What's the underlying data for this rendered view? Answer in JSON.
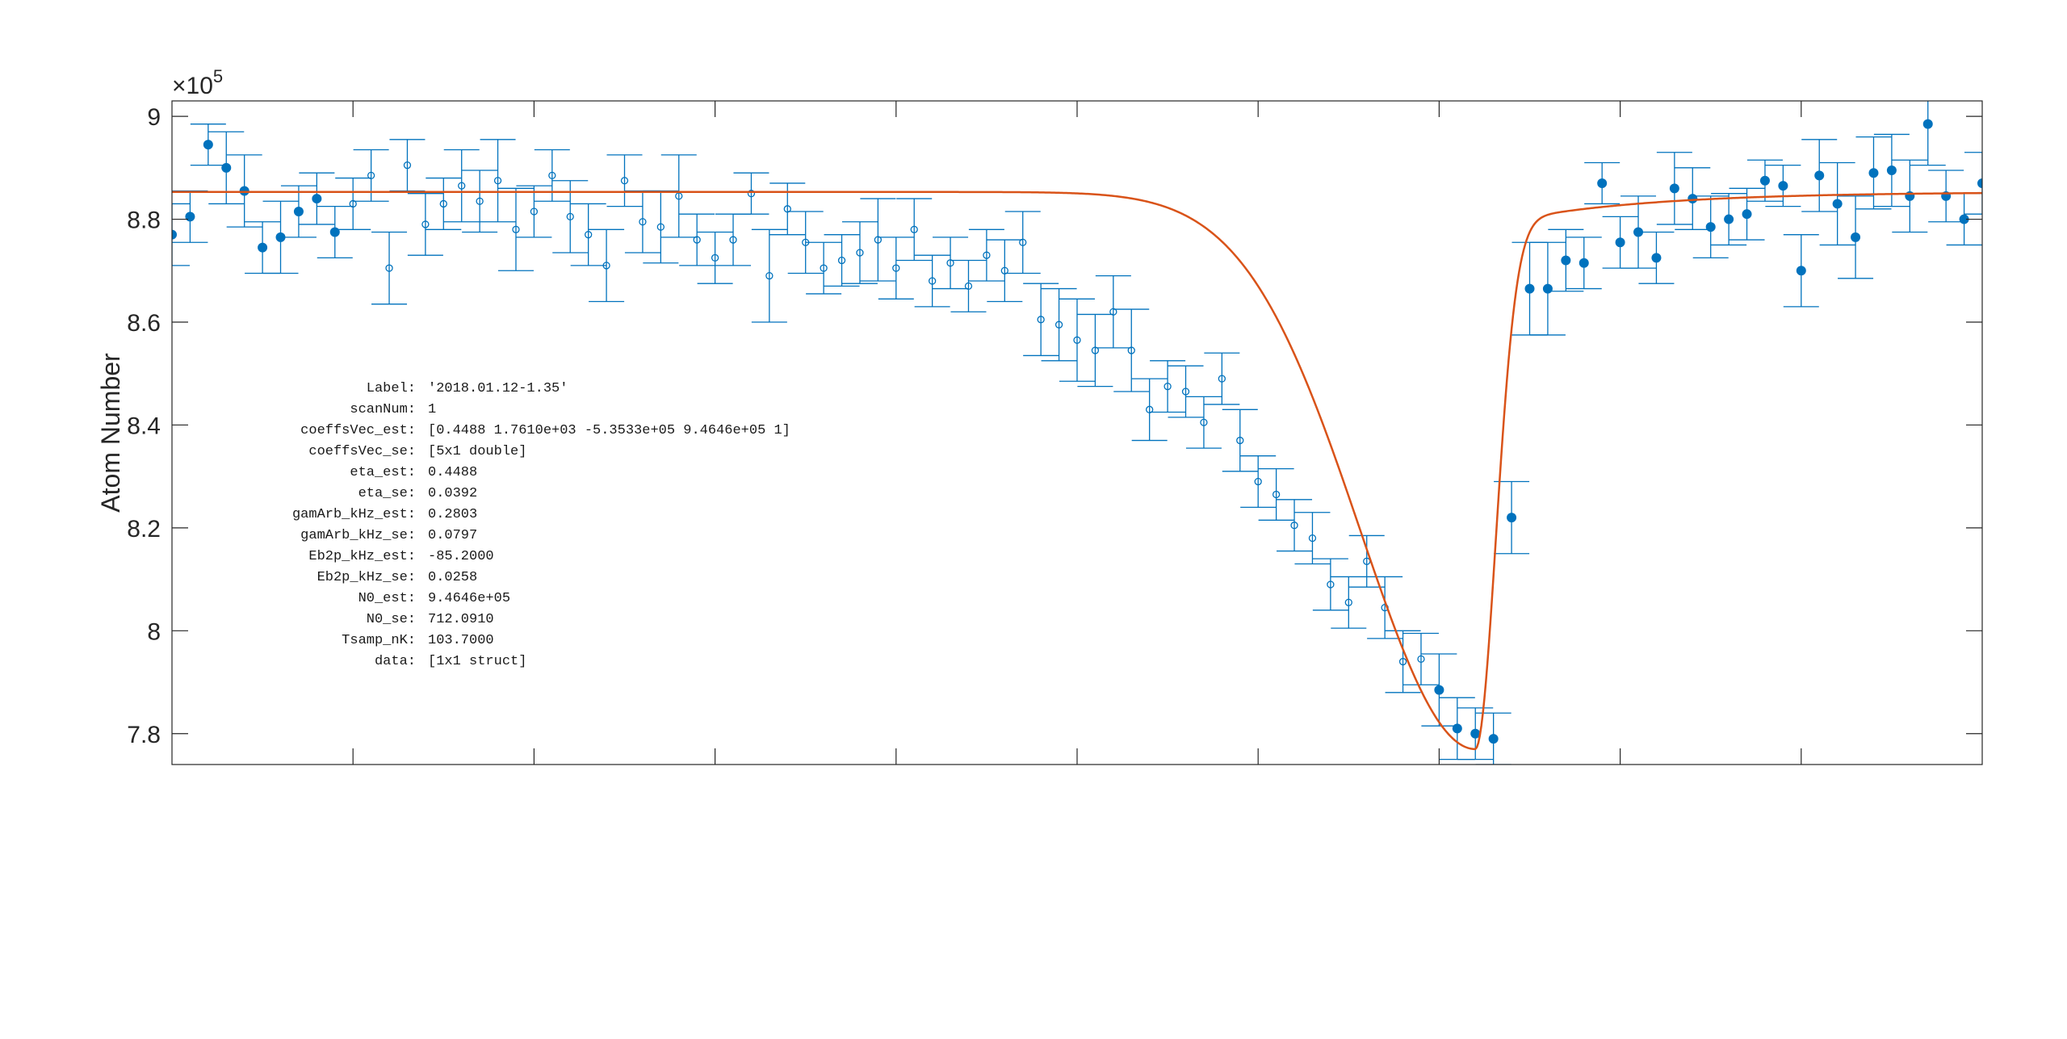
{
  "chart_data": {
    "type": "scatter",
    "title": "",
    "xlabel": "",
    "ylabel": "Atom Number",
    "y_exponent_base": "×10",
    "y_exponent_power": "5",
    "xlim": [
      0,
      100
    ],
    "ylim": [
      7.74,
      9.03
    ],
    "yticks": [
      7.8,
      8.0,
      8.2,
      8.4,
      8.6,
      8.8,
      9.0
    ],
    "ytick_labels": [
      "7.8",
      "8",
      "8.2",
      "8.4",
      "8.6",
      "8.8",
      "9"
    ],
    "xticks": [
      10,
      20,
      30,
      40,
      50,
      60,
      70,
      80,
      90
    ],
    "grid": false,
    "colors": {
      "data": "#0072BD",
      "fit": "#D95319",
      "axes": "#262626"
    },
    "series": [
      {
        "marker": "filled",
        "x": [
          0,
          1,
          2,
          3,
          4,
          5,
          6,
          7,
          8,
          9,
          70,
          71,
          72,
          73,
          74,
          75,
          76,
          77,
          78,
          79,
          80,
          81,
          82,
          83,
          84,
          85,
          86,
          87,
          88,
          89,
          90,
          91,
          92,
          93,
          94,
          95,
          96,
          97,
          98,
          99,
          100
        ],
        "y": [
          8.77,
          8.805,
          8.945,
          8.9,
          8.855,
          8.745,
          8.765,
          8.815,
          8.84,
          8.775,
          7.885,
          7.81,
          7.8,
          7.79,
          8.22,
          8.665,
          8.665,
          8.72,
          8.715,
          8.87,
          8.755,
          8.775,
          8.725,
          8.86,
          8.84,
          8.785,
          8.8,
          8.81,
          8.875,
          8.865,
          8.7,
          8.885,
          8.83,
          8.765,
          8.89,
          8.895,
          8.845,
          8.985,
          8.845,
          8.8,
          8.87
        ],
        "err": [
          0.06,
          0.05,
          0.04,
          0.07,
          0.07,
          0.05,
          0.07,
          0.05,
          0.05,
          0.05,
          0.07,
          0.06,
          0.05,
          0.05,
          0.07,
          0.09,
          0.09,
          0.06,
          0.05,
          0.04,
          0.05,
          0.07,
          0.05,
          0.07,
          0.06,
          0.06,
          0.05,
          0.05,
          0.04,
          0.04,
          0.07,
          0.07,
          0.08,
          0.08,
          0.07,
          0.07,
          0.07,
          0.08,
          0.05,
          0.05,
          0.06
        ]
      },
      {
        "marker": "open",
        "x": [
          10,
          11,
          12,
          13,
          14,
          15,
          16,
          17,
          18,
          19,
          20,
          21,
          22,
          23,
          24,
          25,
          26,
          27,
          28,
          29,
          30,
          31,
          32,
          33,
          34,
          35,
          36,
          37,
          38,
          39,
          40,
          41,
          42,
          43,
          44,
          45,
          46,
          47,
          48,
          49,
          50,
          51,
          52,
          53,
          54,
          55,
          56,
          57,
          58,
          59,
          60,
          61,
          62,
          63,
          64,
          65,
          66,
          67,
          68,
          69
        ],
        "y": [
          8.83,
          8.885,
          8.705,
          8.905,
          8.79,
          8.83,
          8.865,
          8.835,
          8.875,
          8.78,
          8.815,
          8.885,
          8.805,
          8.77,
          8.71,
          8.875,
          8.795,
          8.785,
          8.845,
          8.76,
          8.725,
          8.76,
          8.85,
          8.69,
          8.82,
          8.755,
          8.705,
          8.72,
          8.735,
          8.76,
          8.705,
          8.78,
          8.68,
          8.715,
          8.67,
          8.73,
          8.7,
          8.755,
          8.605,
          8.595,
          8.565,
          8.545,
          8.62,
          8.545,
          8.43,
          8.475,
          8.465,
          8.405,
          8.49,
          8.37,
          8.29,
          8.265,
          8.205,
          8.18,
          8.09,
          8.055,
          8.135,
          8.045,
          7.94,
          7.945
        ],
        "err": [
          0.05,
          0.05,
          0.07,
          0.05,
          0.06,
          0.05,
          0.07,
          0.06,
          0.08,
          0.08,
          0.05,
          0.05,
          0.07,
          0.06,
          0.07,
          0.05,
          0.06,
          0.07,
          0.08,
          0.05,
          0.05,
          0.05,
          0.04,
          0.09,
          0.05,
          0.06,
          0.05,
          0.05,
          0.06,
          0.08,
          0.06,
          0.06,
          0.05,
          0.05,
          0.05,
          0.05,
          0.06,
          0.06,
          0.07,
          0.07,
          0.08,
          0.07,
          0.07,
          0.08,
          0.06,
          0.05,
          0.05,
          0.05,
          0.05,
          0.06,
          0.05,
          0.05,
          0.05,
          0.05,
          0.05,
          0.05,
          0.05,
          0.06,
          0.06,
          0.05
        ]
      }
    ],
    "fit": {
      "baseline": 8.853,
      "min_x": 72,
      "min_y": 7.77,
      "left_width": 9,
      "right_width": 1.6,
      "right_tail_width": 8,
      "right_tail_amp": 0.07
    },
    "annotation": [
      {
        "key": "Label:",
        "value": "'2018.01.12-1.35'"
      },
      {
        "key": "scanNum:",
        "value": "1"
      },
      {
        "key": "coeffsVec_est:",
        "value": "[0.4488 1.7610e+03 -5.3533e+05 9.4646e+05 1]"
      },
      {
        "key": "coeffsVec_se:",
        "value": "[5x1 double]"
      },
      {
        "key": "eta_est:",
        "value": "0.4488"
      },
      {
        "key": "eta_se:",
        "value": "0.0392"
      },
      {
        "key": "gamArb_kHz_est:",
        "value": "0.2803"
      },
      {
        "key": "gamArb_kHz_se:",
        "value": "0.0797"
      },
      {
        "key": "Eb2p_kHz_est:",
        "value": "-85.2000"
      },
      {
        "key": "Eb2p_kHz_se:",
        "value": "0.0258"
      },
      {
        "key": "N0_est:",
        "value": "9.4646e+05"
      },
      {
        "key": "N0_se:",
        "value": "712.0910"
      },
      {
        "key": "Tsamp_nK:",
        "value": "103.7000"
      },
      {
        "key": "data:",
        "value": "[1x1 struct]"
      }
    ]
  }
}
